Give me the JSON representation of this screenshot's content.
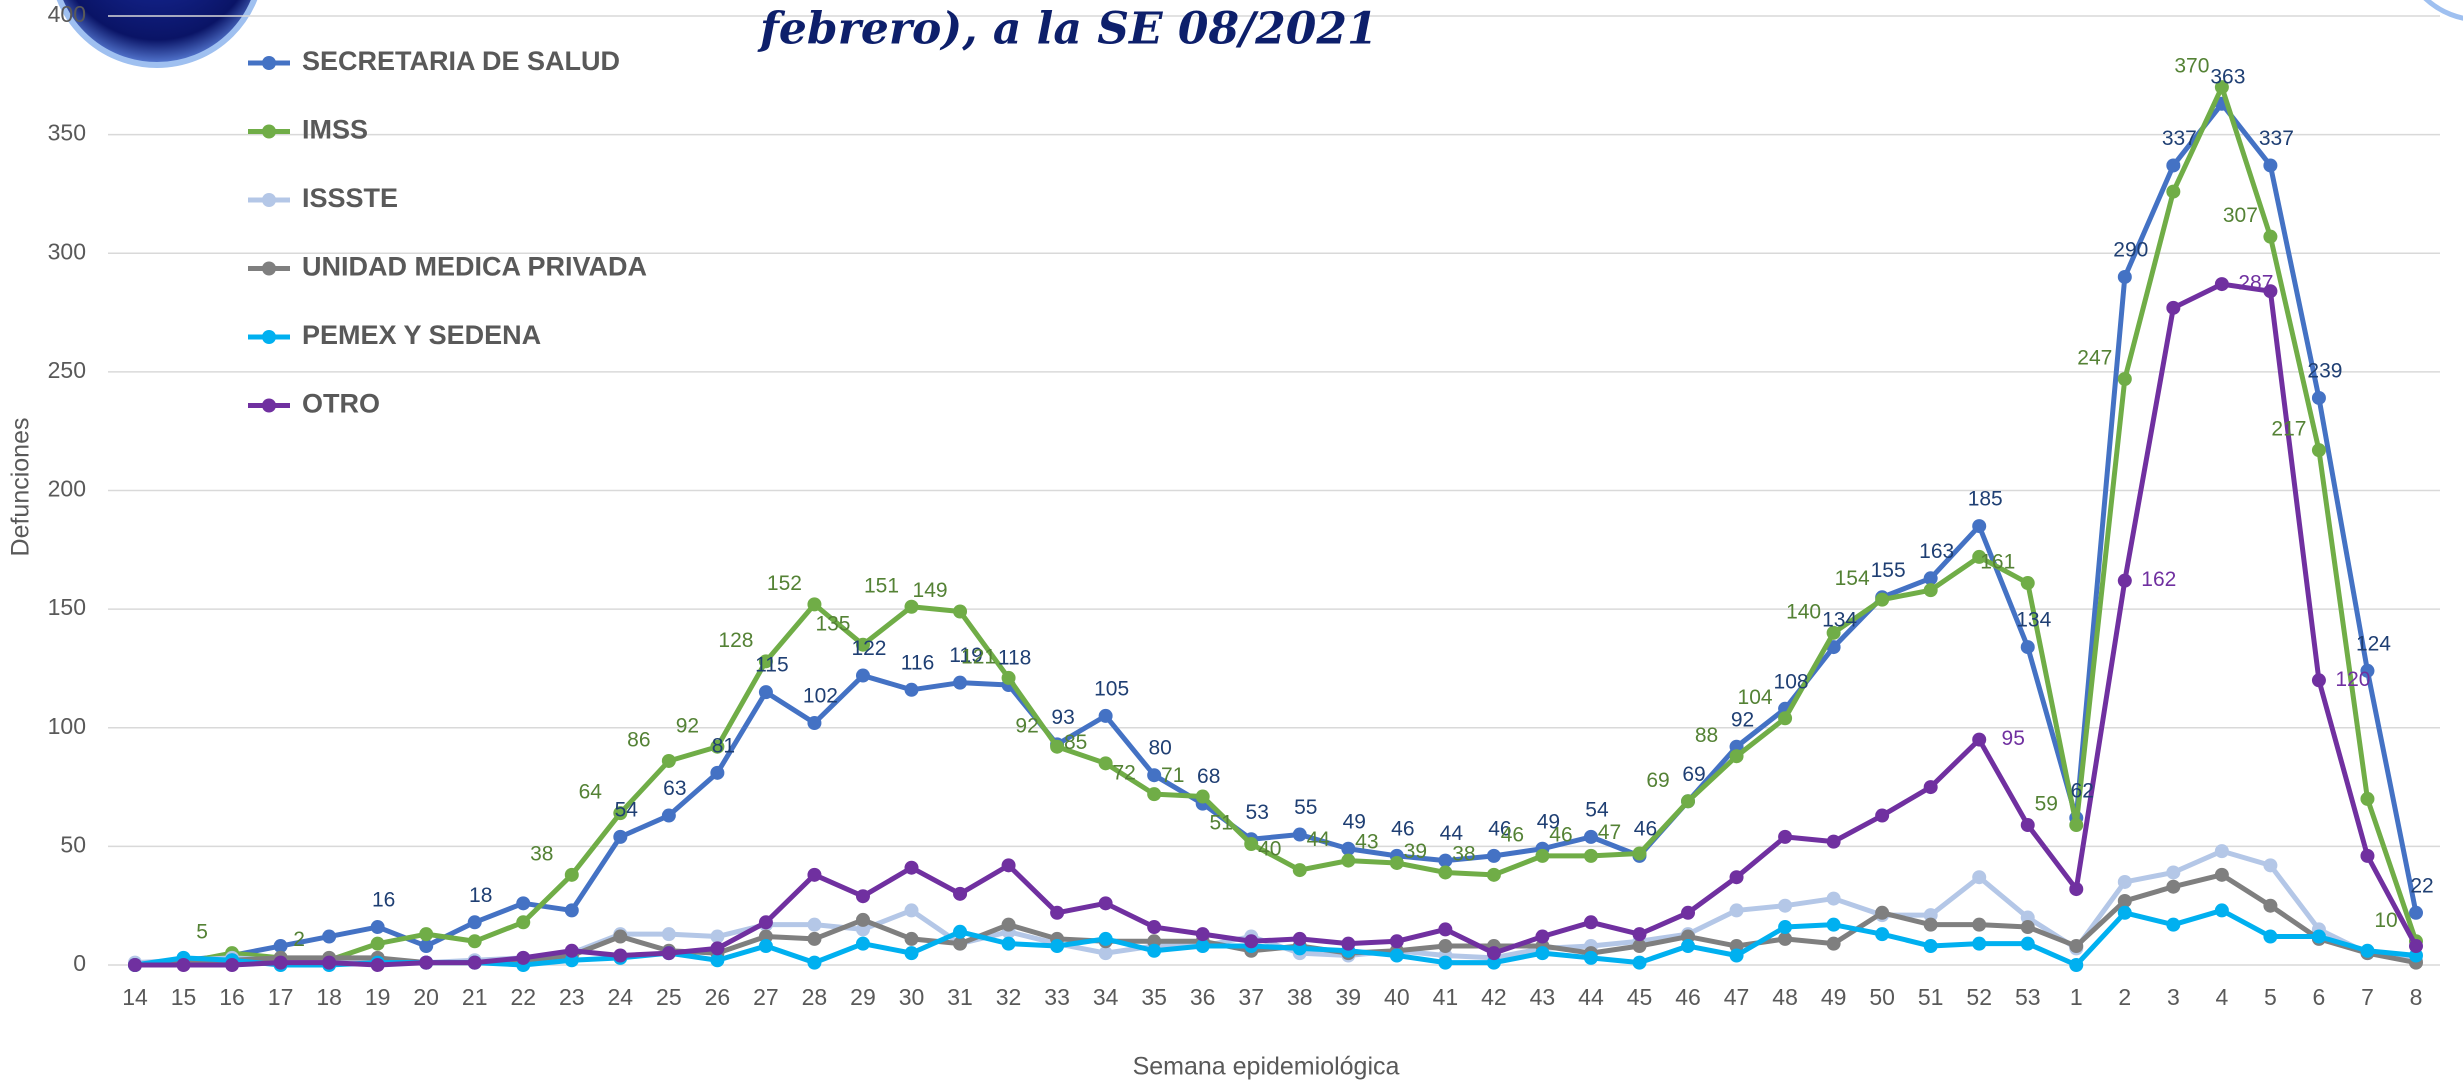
{
  "chart_data": {
    "type": "line",
    "title": "febrero), a la SE 08/2021",
    "y_label": "Defunciones",
    "x_label": "Semana epidemiológica",
    "categories": [
      "14",
      "15",
      "16",
      "17",
      "18",
      "19",
      "20",
      "21",
      "22",
      "23",
      "24",
      "25",
      "26",
      "27",
      "28",
      "29",
      "30",
      "31",
      "32",
      "33",
      "34",
      "35",
      "36",
      "37",
      "38",
      "39",
      "40",
      "41",
      "42",
      "43",
      "44",
      "45",
      "46",
      "47",
      "48",
      "49",
      "50",
      "51",
      "52",
      "53",
      "1",
      "2",
      "3",
      "4",
      "5",
      "6",
      "7",
      "8"
    ],
    "ylim": [
      0,
      400
    ],
    "yticks": [
      0,
      50,
      100,
      150,
      200,
      250,
      300,
      350,
      400
    ],
    "grid": true,
    "legend": "top-left",
    "series": [
      {
        "name": "SECRETARIA DE SALUD",
        "color": "#4472c4",
        "label_color": "#1f3f73",
        "values": [
          0,
          2,
          4,
          8,
          12,
          16,
          8,
          18,
          26,
          23,
          54,
          63,
          81,
          115,
          102,
          122,
          116,
          119,
          118,
          93,
          105,
          80,
          68,
          53,
          55,
          49,
          46,
          44,
          46,
          49,
          54,
          46,
          69,
          92,
          108,
          134,
          155,
          163,
          185,
          134,
          62,
          290,
          337,
          363,
          337,
          239,
          124,
          22
        ],
        "value_labels": [
          null,
          null,
          null,
          null,
          null,
          "16",
          null,
          "18",
          null,
          null,
          "54",
          "63",
          "81",
          "115",
          "102",
          "122",
          "116",
          "119",
          "118",
          "93",
          "105",
          "80",
          "68",
          "53",
          "55",
          "49",
          "46",
          "44",
          "46",
          "49",
          "54",
          "46",
          "69",
          "92",
          "108",
          "134",
          "155",
          "163",
          "185",
          "134",
          "62",
          "290",
          "337",
          "363",
          "337",
          "239",
          "124",
          "22"
        ]
      },
      {
        "name": "IMSS",
        "color": "#70ad47",
        "label_color": "#548235",
        "values": [
          0,
          1,
          5,
          3,
          2,
          9,
          13,
          10,
          18,
          38,
          64,
          86,
          92,
          128,
          152,
          135,
          151,
          149,
          121,
          92,
          85,
          72,
          71,
          51,
          40,
          44,
          43,
          39,
          38,
          46,
          46,
          47,
          69,
          88,
          104,
          140,
          154,
          158,
          172,
          161,
          59,
          247,
          326,
          370,
          307,
          217,
          70,
          10
        ],
        "value_labels": [
          null,
          null,
          "5",
          null,
          "2",
          null,
          null,
          null,
          null,
          "38",
          "64",
          "86",
          "92",
          "128",
          "152",
          "135",
          "151",
          "149",
          "121",
          "92",
          "85",
          "72",
          "71",
          "51",
          "40",
          "44",
          "43",
          "39",
          "38",
          "46",
          "46",
          "47",
          "69",
          "88",
          "104",
          "140",
          "154",
          null,
          null,
          "161",
          "59",
          "247",
          null,
          "370",
          "307",
          "217",
          null,
          "10"
        ]
      },
      {
        "name": "ISSSTE",
        "color": "#b4c7e7",
        "values": [
          1,
          2,
          3,
          2,
          2,
          1,
          1,
          2,
          3,
          5,
          13,
          13,
          12,
          17,
          17,
          15,
          23,
          9,
          14,
          9,
          5,
          8,
          8,
          12,
          5,
          4,
          6,
          4,
          3,
          7,
          8,
          10,
          13,
          23,
          25,
          28,
          21,
          21,
          37,
          20,
          7,
          35,
          39,
          48,
          42,
          15,
          5,
          2
        ]
      },
      {
        "name": "UNIDAD MEDICA PRIVADA",
        "color": "#7f7f7f",
        "values": [
          0,
          1,
          2,
          3,
          3,
          3,
          1,
          1,
          2,
          4,
          12,
          6,
          5,
          12,
          11,
          19,
          11,
          9,
          17,
          11,
          10,
          10,
          10,
          6,
          8,
          5,
          6,
          8,
          8,
          8,
          5,
          8,
          12,
          8,
          11,
          9,
          22,
          17,
          17,
          16,
          8,
          27,
          33,
          38,
          25,
          11,
          5,
          1
        ]
      },
      {
        "name": "PEMEX Y SEDENA",
        "color": "#00b0f0",
        "values": [
          0,
          3,
          2,
          0,
          0,
          1,
          1,
          1,
          0,
          2,
          3,
          5,
          2,
          8,
          1,
          9,
          5,
          14,
          9,
          8,
          11,
          6,
          8,
          8,
          7,
          6,
          4,
          1,
          1,
          5,
          3,
          1,
          8,
          4,
          16,
          17,
          13,
          8,
          9,
          9,
          0,
          22,
          17,
          23,
          12,
          12,
          6,
          4
        ]
      },
      {
        "name": "OTRO",
        "color": "#7030a0",
        "label_color": "#7030a0",
        "values": [
          0,
          0,
          0,
          1,
          1,
          0,
          1,
          1,
          3,
          6,
          4,
          5,
          7,
          18,
          38,
          29,
          41,
          30,
          42,
          22,
          26,
          16,
          13,
          10,
          11,
          9,
          10,
          15,
          5,
          12,
          18,
          13,
          22,
          37,
          54,
          52,
          63,
          75,
          95,
          59,
          32,
          162,
          277,
          287,
          284,
          120,
          46,
          8
        ],
        "value_labels": [
          null,
          null,
          null,
          null,
          null,
          null,
          null,
          null,
          null,
          null,
          null,
          null,
          null,
          null,
          null,
          null,
          null,
          null,
          null,
          null,
          null,
          null,
          null,
          null,
          null,
          null,
          null,
          null,
          null,
          null,
          null,
          null,
          null,
          null,
          null,
          null,
          null,
          null,
          "95",
          null,
          null,
          "162",
          null,
          "287",
          null,
          "120",
          null,
          null
        ]
      }
    ]
  }
}
